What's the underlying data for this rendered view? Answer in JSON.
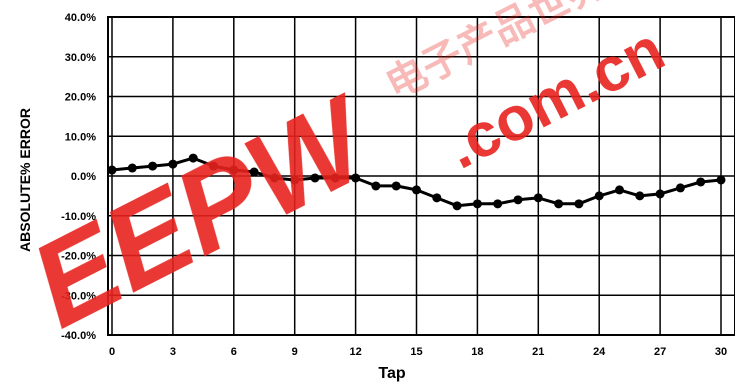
{
  "chart_data": {
    "type": "line",
    "title": "",
    "xlabel": "Tap",
    "ylabel": "ABSOLUTE% ERROR",
    "xlim": [
      0,
      31
    ],
    "ylim": [
      -40,
      40
    ],
    "x_ticks": [
      0,
      3,
      6,
      9,
      12,
      15,
      18,
      21,
      24,
      27,
      30
    ],
    "x_tick_labels": [
      "0",
      "3",
      "6",
      "9",
      "12",
      "15",
      "18",
      "21",
      "24",
      "27",
      "30"
    ],
    "y_ticks": [
      40,
      30,
      20,
      10,
      0,
      -10,
      -20,
      -30,
      -40
    ],
    "y_tick_labels": [
      "40.0%",
      "30.0%",
      "20.0%",
      "10.0%",
      "0.0%",
      "-10.0%",
      "-20.0%",
      "-30.0%",
      "-40.0%"
    ],
    "grid": true,
    "legend": "none",
    "series": [
      {
        "x": [
          0,
          1,
          2,
          3,
          4,
          5,
          6,
          7,
          8,
          9,
          10,
          11,
          12,
          13,
          14,
          15,
          16,
          17,
          18,
          19,
          20,
          21,
          22,
          23,
          24,
          25,
          26,
          27,
          28,
          29,
          30,
          31
        ],
        "values": [
          1.5,
          2.0,
          2.5,
          3.0,
          4.5,
          2.5,
          1.5,
          1.0,
          -0.5,
          -1.0,
          -0.5,
          -0.5,
          -0.5,
          -2.5,
          -2.5,
          -3.5,
          -5.5,
          -7.5,
          -7.0,
          -7.0,
          -6.0,
          -5.5,
          -7.0,
          -7.0,
          -5.0,
          -3.5,
          -5.0,
          -4.5,
          -3.0,
          -1.5,
          -1.0,
          -1.0
        ]
      }
    ],
    "colors": {
      "line": "#000000",
      "marker": "#000000",
      "grid": "#000000"
    }
  },
  "watermark": {
    "logo_text": "EEPW",
    "domain_text": ".com.cn",
    "cjk_text": "电子产品世界",
    "color": "#e8231d"
  }
}
